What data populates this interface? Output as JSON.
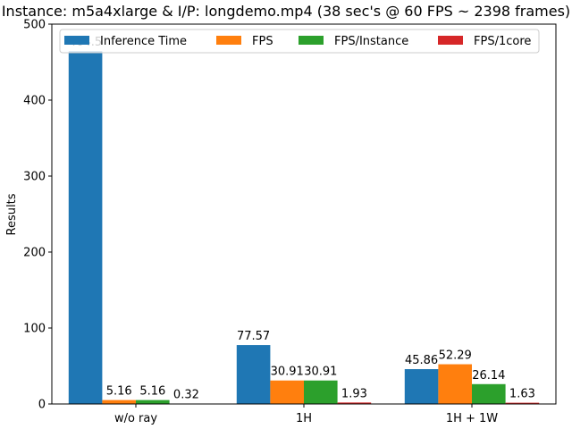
{
  "chart_data": {
    "type": "bar",
    "title": "Instance: m5a4xlarge & I/P: longdemo.mp4 (38 sec's @ 60 FPS ~ 2398 frames)",
    "xlabel": "",
    "ylabel": "Results",
    "categories": [
      "w/o ray",
      "1H",
      "1H + 1W"
    ],
    "ylim": [
      0,
      500
    ],
    "yticks": [
      0,
      100,
      200,
      300,
      400,
      500
    ],
    "grid": false,
    "legend_position": "top",
    "series": [
      {
        "name": "Inference Time",
        "color": "#1f77b4",
        "values": [
          464.5,
          77.57,
          45.86
        ],
        "labels": [
          "464.5",
          "77.57",
          "45.86"
        ]
      },
      {
        "name": "FPS",
        "color": "#ff7f0e",
        "values": [
          5.16,
          30.91,
          52.29
        ],
        "labels": [
          "5.16",
          "30.91",
          "52.29"
        ]
      },
      {
        "name": "FPS/Instance",
        "color": "#2ca02c",
        "values": [
          5.16,
          30.91,
          26.14
        ],
        "labels": [
          "5.16",
          "30.91",
          "26.14"
        ]
      },
      {
        "name": "FPS/1core",
        "color": "#d62728",
        "values": [
          0.32,
          1.93,
          1.63
        ],
        "labels": [
          "0.32",
          "1.93",
          "1.63"
        ]
      }
    ]
  }
}
